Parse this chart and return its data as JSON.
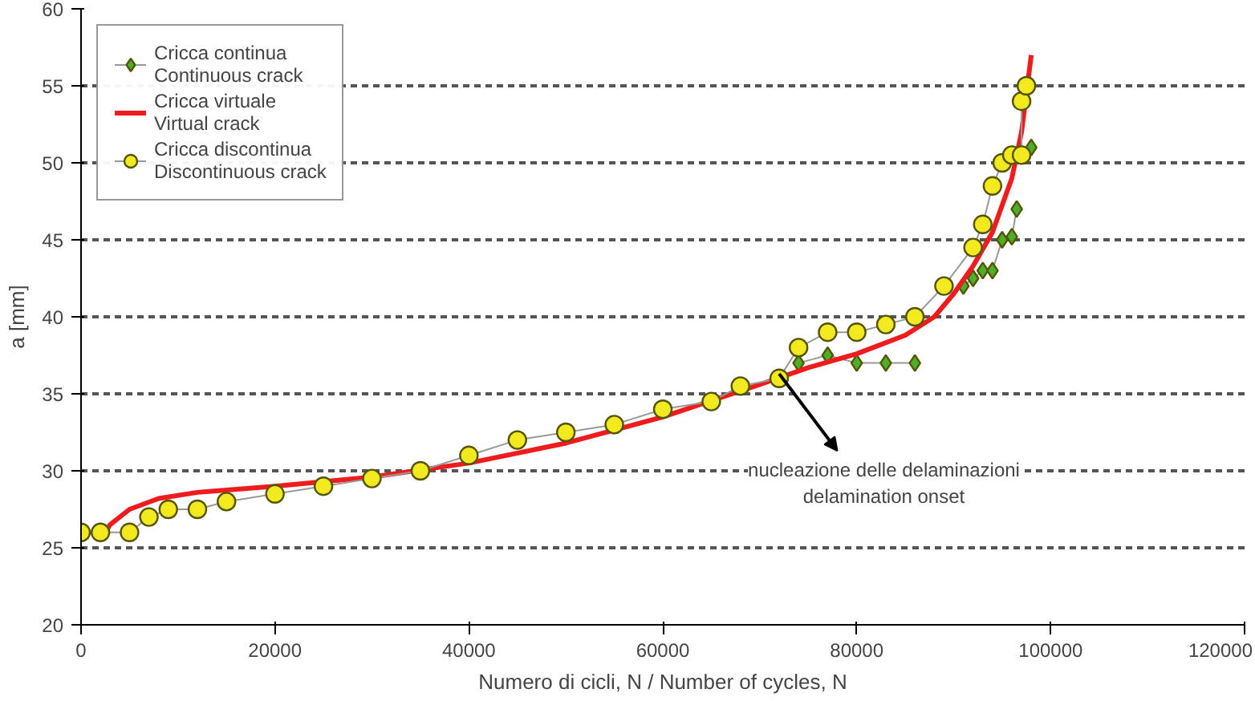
{
  "chart_data": {
    "type": "line",
    "xlabel": "Numero di cicli, N / Number of cycles, N",
    "ylabel": "a [mm]",
    "xlim": [
      0,
      120000
    ],
    "xticks": [
      0,
      20000,
      40000,
      60000,
      80000,
      100000,
      120000
    ],
    "ylim": [
      20,
      60
    ],
    "yticks": [
      20,
      25,
      30,
      35,
      40,
      45,
      50,
      55,
      60
    ],
    "grid": "y",
    "legend": "top left",
    "series": [
      {
        "name": "Cricca continua\nContinuous crack",
        "marker": "diamond",
        "color": "#4caf2a",
        "x": [
          74000,
          77000,
          80000,
          83000,
          86000,
          89000,
          91000,
          92000,
          93000,
          94000,
          95000,
          96000,
          96500,
          97000,
          98000
        ],
        "values": [
          37,
          37.5,
          37,
          37,
          37,
          null,
          42,
          42.5,
          43,
          43,
          45,
          45.2,
          47,
          null,
          51
        ]
      },
      {
        "name": "Cricca virtuale\nVirtual crack",
        "marker": "none",
        "color": "#ee1c1c",
        "x": [
          2500,
          3000,
          5000,
          8000,
          12000,
          20000,
          30000,
          40000,
          50000,
          60000,
          70000,
          75000,
          80000,
          85000,
          88000,
          90000,
          92000,
          94000,
          96000,
          97000,
          98000
        ],
        "values": [
          26,
          26.5,
          27.5,
          28.2,
          28.6,
          29,
          29.6,
          30.5,
          31.8,
          33.5,
          35.6,
          36.7,
          37.6,
          38.8,
          40,
          41.5,
          43.3,
          45.5,
          49,
          52,
          57
        ]
      },
      {
        "name": "Cricca discontinua\nDiscontinuous crack",
        "marker": "circle",
        "color": "#f2ea1e",
        "x": [
          0,
          2000,
          5000,
          7000,
          9000,
          12000,
          15000,
          20000,
          25000,
          30000,
          35000,
          40000,
          45000,
          50000,
          55000,
          60000,
          65000,
          68000,
          72000,
          74000,
          77000,
          80000,
          83000,
          86000,
          89000,
          92000,
          93000,
          94000,
          95000,
          96000,
          97000,
          97000,
          97500
        ],
        "values": [
          26,
          26,
          26,
          27,
          27.5,
          27.5,
          28,
          28.5,
          29,
          29.5,
          30,
          31,
          32,
          32.5,
          33,
          34,
          34.5,
          35.5,
          36,
          38,
          39,
          39,
          39.5,
          40,
          42,
          44.5,
          46,
          48.5,
          50,
          50.5,
          50.5,
          54,
          55
        ]
      }
    ],
    "annotations": [
      {
        "text": "nucleazione delle delaminazioni\ndelamination onset",
        "x": 72000,
        "y": 36.3
      }
    ]
  }
}
